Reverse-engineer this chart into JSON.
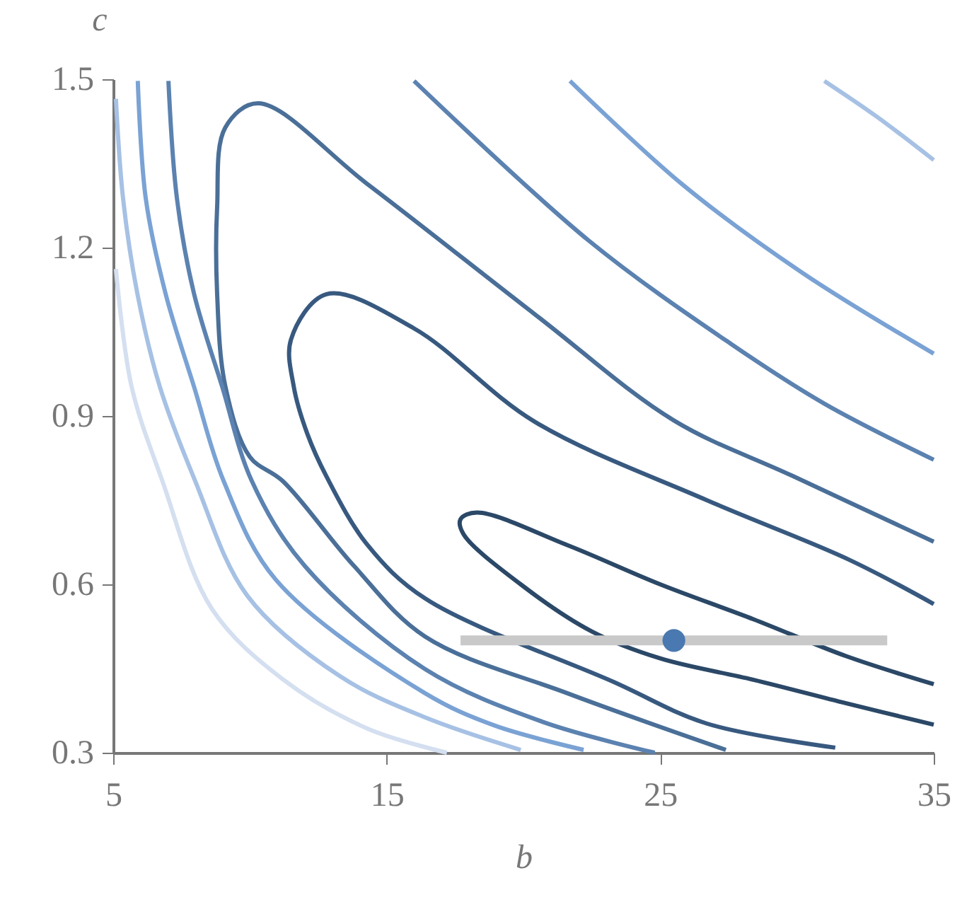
{
  "chart_data": {
    "type": "line",
    "xlabel": "b",
    "ylabel": "c",
    "xlim": [
      5,
      35
    ],
    "ylim": [
      0.3,
      1.5
    ],
    "xticks": [
      5,
      15,
      25,
      35
    ],
    "yticks": [
      0.3,
      0.6,
      0.9,
      1.2,
      1.5
    ],
    "series": [
      {
        "color": "#2b4867",
        "x": [
          35,
          31.8,
          28.4,
          25.0,
          21.6,
          18.3,
          17.7,
          17.8,
          19.9,
          22.5,
          25.0,
          28.4,
          31.8,
          35
        ],
        "values": [
          0.422,
          0.472,
          0.538,
          0.6,
          0.67,
          0.728,
          0.716,
          0.69,
          0.6,
          0.516,
          0.468,
          0.43,
          0.388,
          0.35
        ]
      },
      {
        "color": "#38597f",
        "x": [
          35,
          31.9,
          26.7,
          20.4,
          16.0,
          12.8,
          11.5,
          11.6,
          12.1,
          12.8,
          14.3,
          16.4,
          23.3,
          26.7,
          31.4
        ],
        "values": [
          0.565,
          0.644,
          0.75,
          0.89,
          1.056,
          1.117,
          1.036,
          0.953,
          0.868,
          0.792,
          0.67,
          0.575,
          0.426,
          0.352,
          0.309
        ]
      },
      {
        "color": "#4a6f98",
        "x": [
          35,
          29.8,
          25.5,
          20.5,
          14.3,
          10.3,
          9.1,
          8.8,
          8.8,
          9.1,
          10.0,
          11.2,
          13.8,
          16.4,
          21.6,
          27.4
        ],
        "values": [
          0.676,
          0.794,
          0.892,
          1.078,
          1.313,
          1.457,
          1.414,
          1.271,
          1.119,
          0.953,
          0.827,
          0.784,
          0.633,
          0.507,
          0.406,
          0.305
        ]
      },
      {
        "color": "#5b82b0",
        "x": [
          7.02,
          7.33,
          7.95,
          8.98,
          10.07,
          12.0,
          16.4,
          20.7,
          24.8
        ],
        "values": [
          1.497,
          1.288,
          1.119,
          0.953,
          0.784,
          0.633,
          0.449,
          0.355,
          0.3
        ]
      },
      {
        "color": "#5b82b0",
        "x": [
          16.0,
          22.4,
          27.6,
          31.0,
          35
        ],
        "values": [
          1.497,
          1.212,
          1.028,
          0.922,
          0.822
        ]
      },
      {
        "color": "#7aa2d4",
        "x": [
          5.9,
          6.19,
          6.91,
          7.95,
          9.04,
          10.95,
          16.4,
          18.97,
          22.2
        ],
        "values": [
          1.497,
          1.288,
          1.119,
          0.953,
          0.784,
          0.608,
          0.406,
          0.348,
          0.305
        ]
      },
      {
        "color": "#7aa2d4",
        "x": [
          21.7,
          25.8,
          30.2,
          35
        ],
        "values": [
          1.497,
          1.313,
          1.155,
          1.011
        ]
      },
      {
        "color": "#a6c1e4",
        "x": [
          5.1,
          5.36,
          5.88,
          6.7,
          8.0,
          9.9,
          13.3,
          16.4,
          19.9
        ],
        "values": [
          1.465,
          1.288,
          1.119,
          0.953,
          0.784,
          0.58,
          0.436,
          0.363,
          0.305
        ]
      },
      {
        "color": "#a6c1e4",
        "x": [
          31.0,
          32.9,
          35
        ],
        "values": [
          1.497,
          1.434,
          1.356
        ]
      },
      {
        "color": "#d4dff0",
        "x": [
          5.1,
          5.67,
          6.8,
          8.6,
          11.2,
          14.3,
          17.2
        ],
        "values": [
          1.162,
          0.953,
          0.784,
          0.557,
          0.431,
          0.343,
          0.3
        ]
      },
      {
        "type": "scatter",
        "color": "#4a78b0",
        "x": [
          25.5
        ],
        "values": [
          0.5
        ],
        "xerrors": [
          [
            17.7,
            33.3
          ]
        ]
      }
    ]
  }
}
